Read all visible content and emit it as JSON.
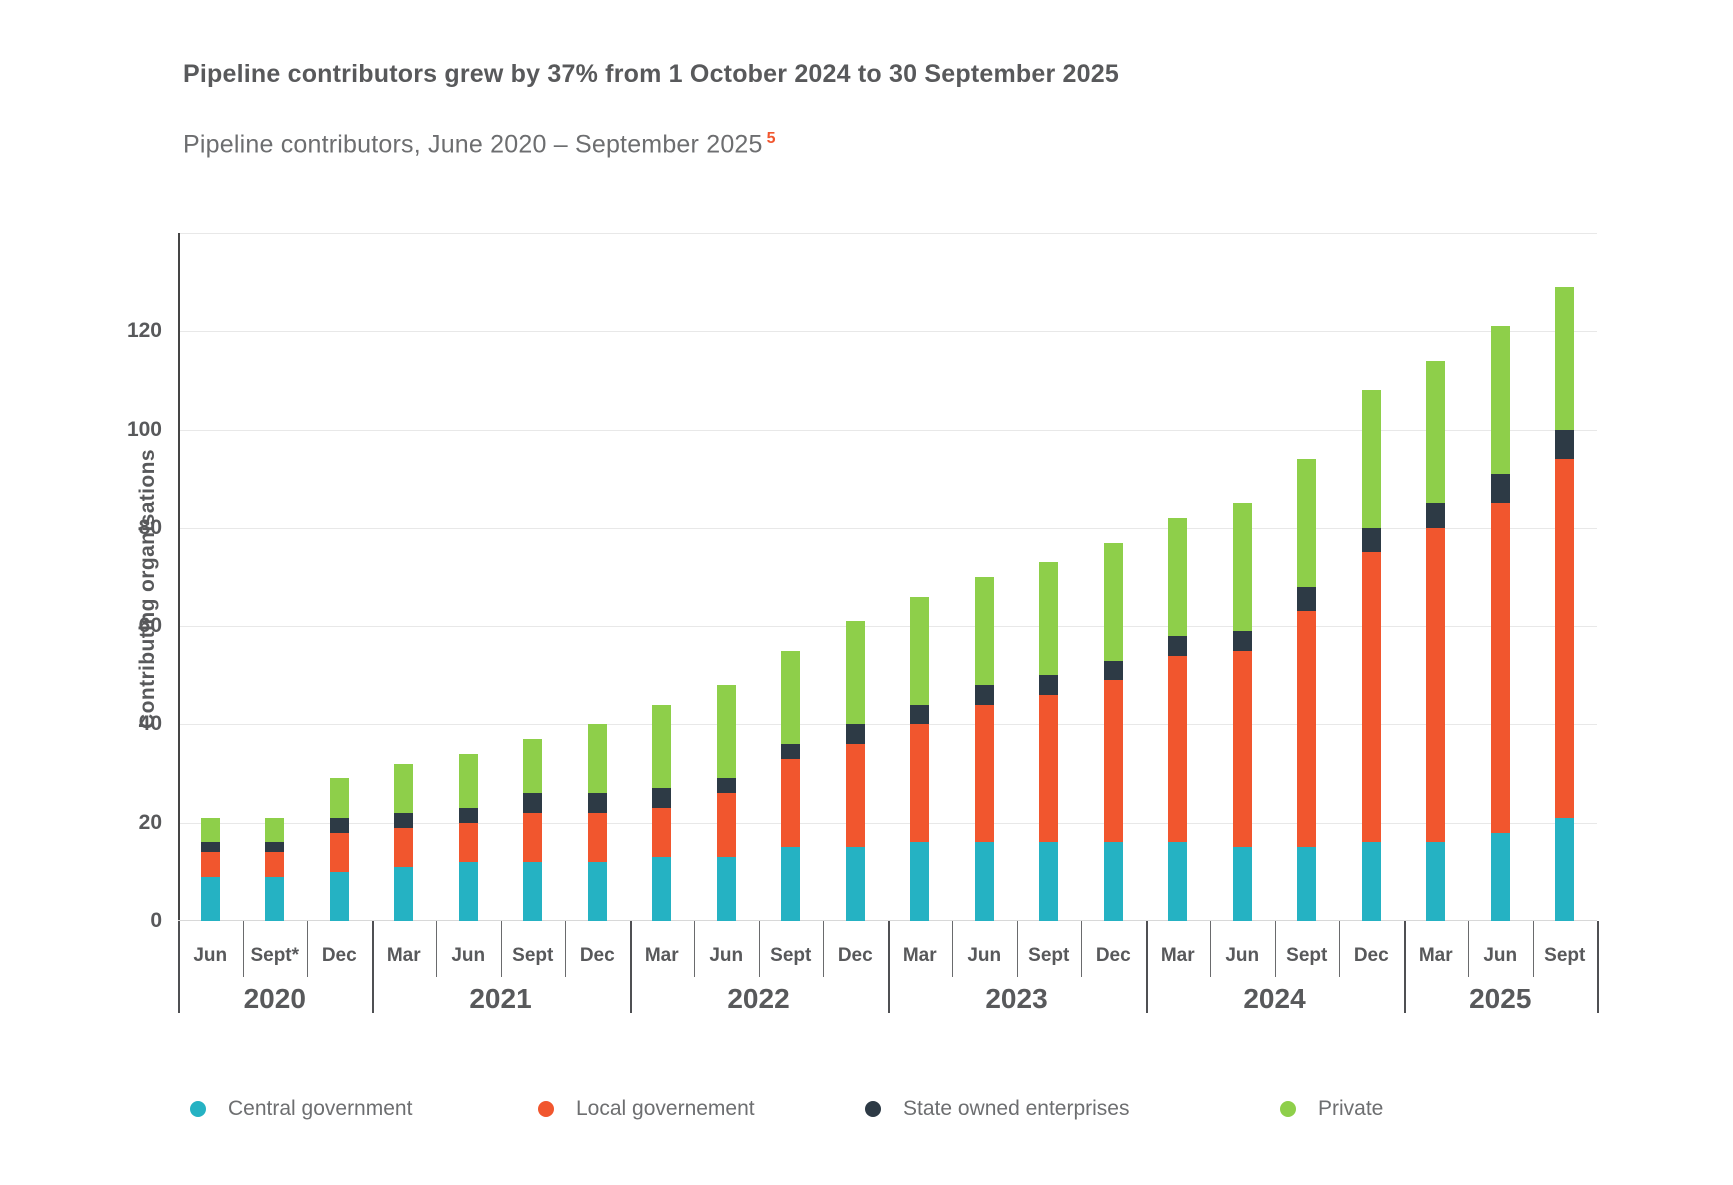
{
  "header": {
    "title": "Pipeline contributors grew by 37% from 1 October 2024 to 30 September 2025",
    "subtitle": "Pipeline contributors, June 2020 – September 2025",
    "footnote_marker": "5"
  },
  "y_axis": {
    "label": "Contributing organisations",
    "tick_values": [
      0,
      20,
      40,
      60,
      80,
      100,
      120
    ]
  },
  "chart_data": {
    "type": "bar",
    "stacked": true,
    "title": "Pipeline contributors, June 2020 – September 2025",
    "ylabel": "Contributing organisations",
    "ylim": [
      0,
      140
    ],
    "grid": true,
    "legend_position": "bottom",
    "categories": [
      "Jun",
      "Sept*",
      "Dec",
      "Mar",
      "Jun",
      "Sept",
      "Dec",
      "Mar",
      "Jun",
      "Sept",
      "Dec",
      "Mar",
      "Jun",
      "Sept",
      "Dec",
      "Mar",
      "Jun",
      "Sept",
      "Dec",
      "Mar",
      "Jun",
      "Sept"
    ],
    "year_groups": [
      {
        "label": "2020",
        "start": 0,
        "span": 3
      },
      {
        "label": "2021",
        "start": 3,
        "span": 4
      },
      {
        "label": "2022",
        "start": 7,
        "span": 4
      },
      {
        "label": "2023",
        "start": 11,
        "span": 4
      },
      {
        "label": "2024",
        "start": 15,
        "span": 4
      },
      {
        "label": "2025",
        "start": 19,
        "span": 3
      }
    ],
    "series": [
      {
        "name": "Central government",
        "color": "#25b2c3",
        "values": [
          9,
          9,
          10,
          11,
          12,
          12,
          12,
          13,
          13,
          15,
          15,
          16,
          16,
          16,
          16,
          16,
          15,
          15,
          16,
          16,
          18,
          21
        ]
      },
      {
        "name": "Local governement",
        "color": "#f1562e",
        "values": [
          5,
          5,
          8,
          8,
          8,
          10,
          10,
          10,
          13,
          18,
          21,
          24,
          28,
          30,
          33,
          38,
          40,
          48,
          59,
          64,
          67,
          73
        ]
      },
      {
        "name": "State owned enterprises",
        "color": "#2d3a45",
        "values": [
          2,
          2,
          3,
          3,
          3,
          4,
          4,
          4,
          3,
          3,
          4,
          4,
          4,
          4,
          4,
          4,
          4,
          5,
          5,
          5,
          6,
          6
        ]
      },
      {
        "name": "Private",
        "color": "#8ecf4a",
        "values": [
          5,
          5,
          8,
          10,
          11,
          11,
          14,
          17,
          19,
          19,
          21,
          22,
          22,
          23,
          24,
          24,
          26,
          26,
          28,
          29,
          30,
          29
        ]
      }
    ],
    "totals": [
      21,
      21,
      29,
      32,
      34,
      37,
      40,
      44,
      48,
      55,
      61,
      66,
      70,
      73,
      77,
      82,
      85,
      94,
      108,
      114,
      121,
      129
    ]
  },
  "legend": {
    "items": [
      {
        "label": "Central government",
        "color": "#25b2c3"
      },
      {
        "label": "Local governement",
        "color": "#f1562e"
      },
      {
        "label": "State owned enterprises",
        "color": "#2d3a45"
      },
      {
        "label": "Private",
        "color": "#8ecf4a"
      }
    ]
  }
}
